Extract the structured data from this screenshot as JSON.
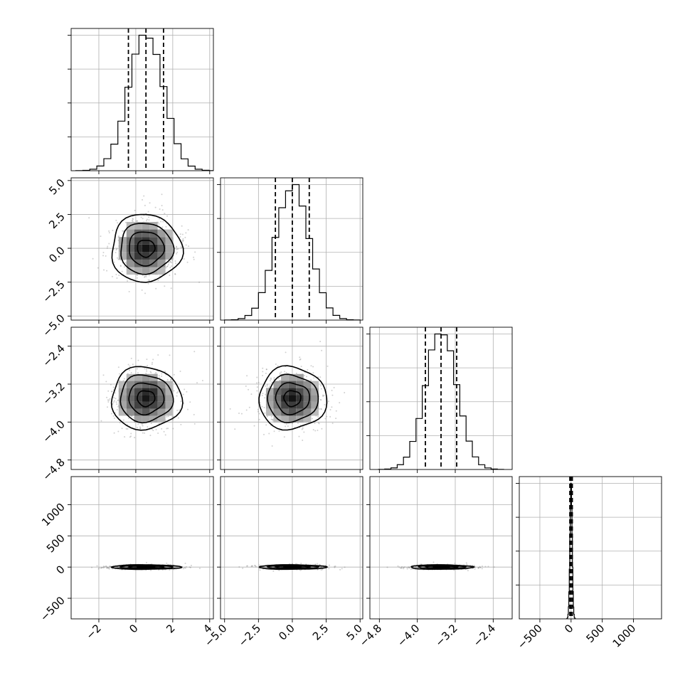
{
  "chart_data": {
    "type": "corner",
    "grid": true,
    "parameters": [
      {
        "range": [
          -3.5,
          4.2
        ],
        "mean": 0.55,
        "std": 0.95,
        "quantiles": [
          -0.4,
          0.55,
          1.5
        ],
        "x_ticks": [
          -2,
          0,
          2,
          4
        ],
        "x_tick_labels": [
          "−2",
          "0",
          "2",
          "4"
        ],
        "y_ticks": null,
        "y_tick_labels": null
      },
      {
        "range": [
          -5.3,
          5.2
        ],
        "mean": 0.0,
        "std": 1.25,
        "quantiles": [
          -1.25,
          0.0,
          1.25
        ],
        "x_ticks": [
          -5.0,
          -2.5,
          0.0,
          2.5,
          5.0
        ],
        "x_tick_labels": [
          "−5.0",
          "−2.5",
          "0.0",
          "2.5",
          "5.0"
        ],
        "y_ticks": [
          5.0,
          2.5,
          0.0,
          -2.5,
          -5.0
        ],
        "y_tick_labels": [
          "5.0",
          "2.5",
          "0.0",
          "−2.5",
          "−5.0"
        ]
      },
      {
        "range": [
          -5.0,
          -2.0
        ],
        "mean": -3.5,
        "std": 0.33,
        "quantiles": [
          -3.83,
          -3.5,
          -3.17
        ],
        "x_ticks": [
          -4.8,
          -4.0,
          -3.2,
          -2.4
        ],
        "x_tick_labels": [
          "−4.8",
          "−4.0",
          "−3.2",
          "−2.4"
        ],
        "y_ticks": [
          -2.4,
          -3.2,
          -4.0,
          -4.8
        ],
        "y_tick_labels": [
          "−2.4",
          "−3.2",
          "−4.0",
          "−4.8"
        ]
      },
      {
        "range": [
          -830,
          1450
        ],
        "mean": 0.0,
        "std": 18,
        "quantiles": [
          -20,
          0,
          20
        ],
        "x_ticks": [
          -500,
          0,
          500,
          1000
        ],
        "x_tick_labels": [
          "−500",
          "0",
          "500",
          "1000"
        ],
        "y_ticks": [
          1000,
          500,
          0,
          -500
        ],
        "y_tick_labels": [
          "1000",
          "500",
          "0",
          "−500"
        ]
      }
    ]
  }
}
